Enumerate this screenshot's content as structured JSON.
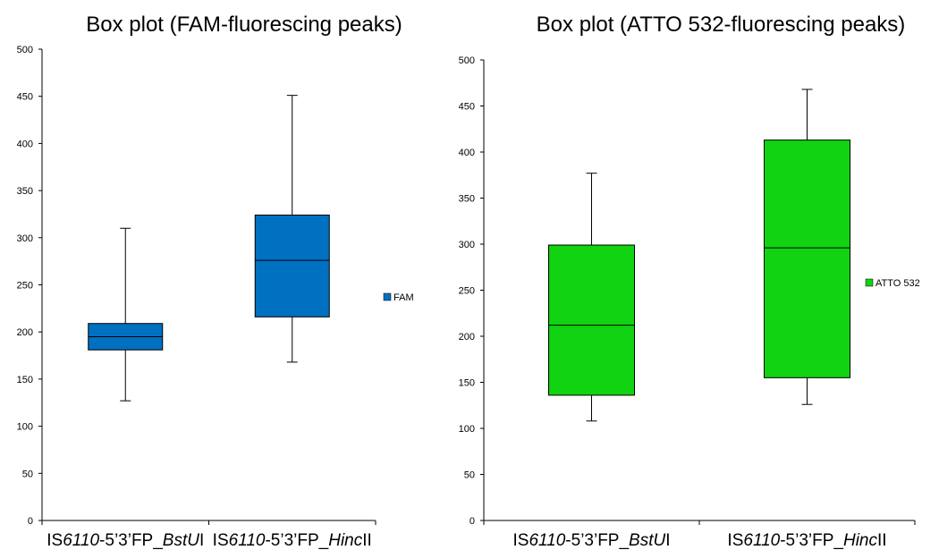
{
  "chart_data": [
    {
      "type": "box",
      "title": "Box plot (FAM-fluorescing peaks)",
      "categories": [
        {
          "prefix": "IS",
          "italic1": "6110",
          "mid": "-5’3’FP_",
          "italic2": "BstU",
          "suffix": "I"
        },
        {
          "prefix": "IS",
          "italic1": "6110",
          "mid": "-5’3’FP_",
          "italic2": "Hinc",
          "suffix": "II"
        }
      ],
      "series": [
        {
          "name": "FAM",
          "color": "#0070C0",
          "boxes": [
            {
              "min": 127,
              "q1": 181,
              "median": 195,
              "q3": 209,
              "max": 310
            },
            {
              "min": 168,
              "q1": 216,
              "median": 276,
              "q3": 324,
              "max": 451
            }
          ]
        }
      ],
      "ylim": [
        0,
        500
      ],
      "yticks": [
        "0",
        "50",
        "100",
        "150",
        "200",
        "250",
        "300",
        "350",
        "400",
        "450",
        "500"
      ],
      "legend": "right",
      "grid": false
    },
    {
      "type": "box",
      "title": "Box plot (ATTO 532-fluorescing peaks)",
      "categories": [
        {
          "prefix": "IS",
          "italic1": "6110",
          "mid": "-5’3’FP_",
          "italic2": "BstU",
          "suffix": "I"
        },
        {
          "prefix": "IS",
          "italic1": "6110",
          "mid": "-5’3’FP_",
          "italic2": "Hinc",
          "suffix": "II"
        }
      ],
      "series": [
        {
          "name": "ATTO 532",
          "color": "#11D311",
          "boxes": [
            {
              "min": 108,
              "q1": 136,
              "median": 212,
              "q3": 299,
              "max": 377
            },
            {
              "min": 126,
              "q1": 155,
              "median": 296,
              "q3": 413,
              "max": 468
            }
          ]
        }
      ],
      "ylim": [
        0,
        500
      ],
      "yticks": [
        "0",
        "50",
        "100",
        "150",
        "200",
        "250",
        "300",
        "350",
        "400",
        "450",
        "500"
      ],
      "legend": "right",
      "grid": false
    }
  ]
}
